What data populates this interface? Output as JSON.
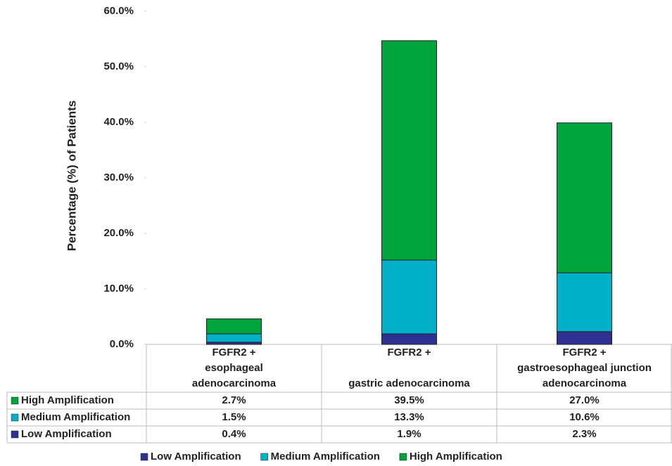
{
  "chart_data": {
    "type": "stacked_bar",
    "y_label": "Percentage (%) of Patients",
    "categories": [
      "FGFR2 +\nesophageal\nadenocarcinoma",
      "FGFR2 +\n\ngastric adenocarcinoma",
      "FGFR2 +\ngastroesophageal junction\nadenocarcinoma"
    ],
    "series": [
      {
        "name": "Low Amplification",
        "color": "#2e3192",
        "values": [
          0.4,
          1.9,
          2.3
        ],
        "value_labels": [
          "0.4%",
          "1.9%",
          "2.3%"
        ]
      },
      {
        "name": "Medium Amplification",
        "color": "#00b0c8",
        "values": [
          1.5,
          13.3,
          10.6
        ],
        "value_labels": [
          "1.5%",
          "13.3%",
          "10.6%"
        ]
      },
      {
        "name": "High Amplification",
        "color": "#00a33c",
        "values": [
          2.7,
          39.5,
          27.0
        ],
        "value_labels": [
          "2.7%",
          "39.5%",
          "27.0%"
        ]
      }
    ],
    "ylim": [
      0,
      60
    ],
    "yticks": [
      {
        "value": 0,
        "label": "0.0%"
      },
      {
        "value": 10,
        "label": "10.0%"
      },
      {
        "value": 20,
        "label": "20.0%"
      },
      {
        "value": 30,
        "label": "30.0%"
      },
      {
        "value": 40,
        "label": "40.0%"
      },
      {
        "value": 50,
        "label": "50.0%"
      },
      {
        "value": 60,
        "label": "60.0%"
      }
    ],
    "grid": false
  }
}
